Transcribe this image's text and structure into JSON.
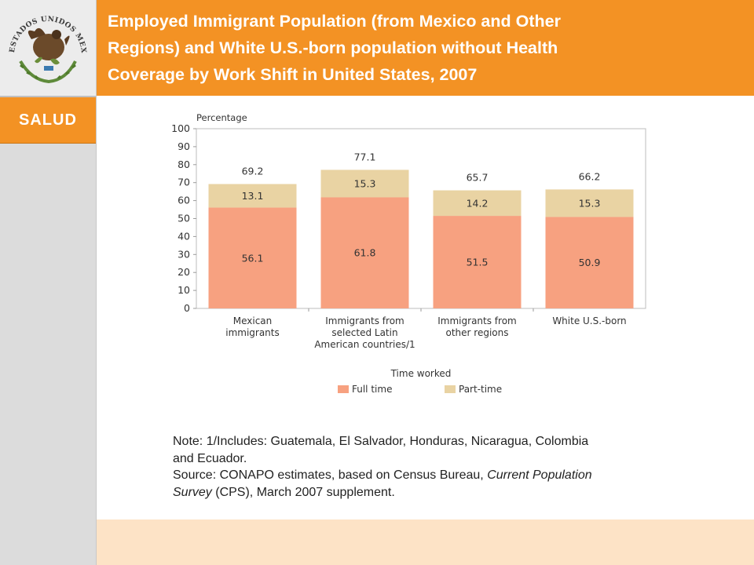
{
  "header": {
    "title": "Employed Immigrant Population (from Mexico and Other\nRegions) and White U.S.-born population without Health\nCoverage by Work Shift in United States, 2007"
  },
  "sidebar": {
    "emblem_text": "ESTADOS UNIDOS MEXICANOS",
    "section_label": "SALUD"
  },
  "colors": {
    "header": "#f39224",
    "full_time": "#f7a180",
    "part_time": "#e9d3a3"
  },
  "chart_data": {
    "type": "bar",
    "stacked": true,
    "ylabel": "Percentage",
    "xlabel": "Time worked",
    "ylim": [
      0,
      100
    ],
    "yticks": [
      "0",
      "10",
      "20",
      "30",
      "40",
      "50",
      "60",
      "70",
      "80",
      "90",
      "100"
    ],
    "categories": [
      [
        "Mexican",
        "immigrants"
      ],
      [
        "Immigrants from",
        "selected Latin",
        "American countries/1"
      ],
      [
        "Immigrants from",
        "other regions"
      ],
      [
        "White U.S.-born"
      ]
    ],
    "series": [
      {
        "name": "Full time",
        "values": [
          56.1,
          61.8,
          51.5,
          50.9
        ],
        "labels": [
          "56.1",
          "61.8",
          "51.5",
          "50.9"
        ]
      },
      {
        "name": "Part-time",
        "values": [
          13.1,
          15.3,
          14.2,
          15.3
        ],
        "labels": [
          "13.1",
          "15.3",
          "14.2",
          "15.3"
        ]
      }
    ],
    "totals": [
      "69.2",
      "77.1",
      "65.7",
      "66.2"
    ],
    "grid": false,
    "legend_position": "bottom"
  },
  "notes": {
    "note_line1": "Note: 1/Includes: Guatemala, El Salvador, Honduras, Nicaragua, Colombia",
    "note_line2": "and Ecuador.",
    "source_prefix": "Source: CONAPO estimates, based on Census Bureau, ",
    "source_italic1": "Current Population",
    "source_italic2": "Survey",
    "source_suffix": " (CPS), March 2007 supplement."
  }
}
